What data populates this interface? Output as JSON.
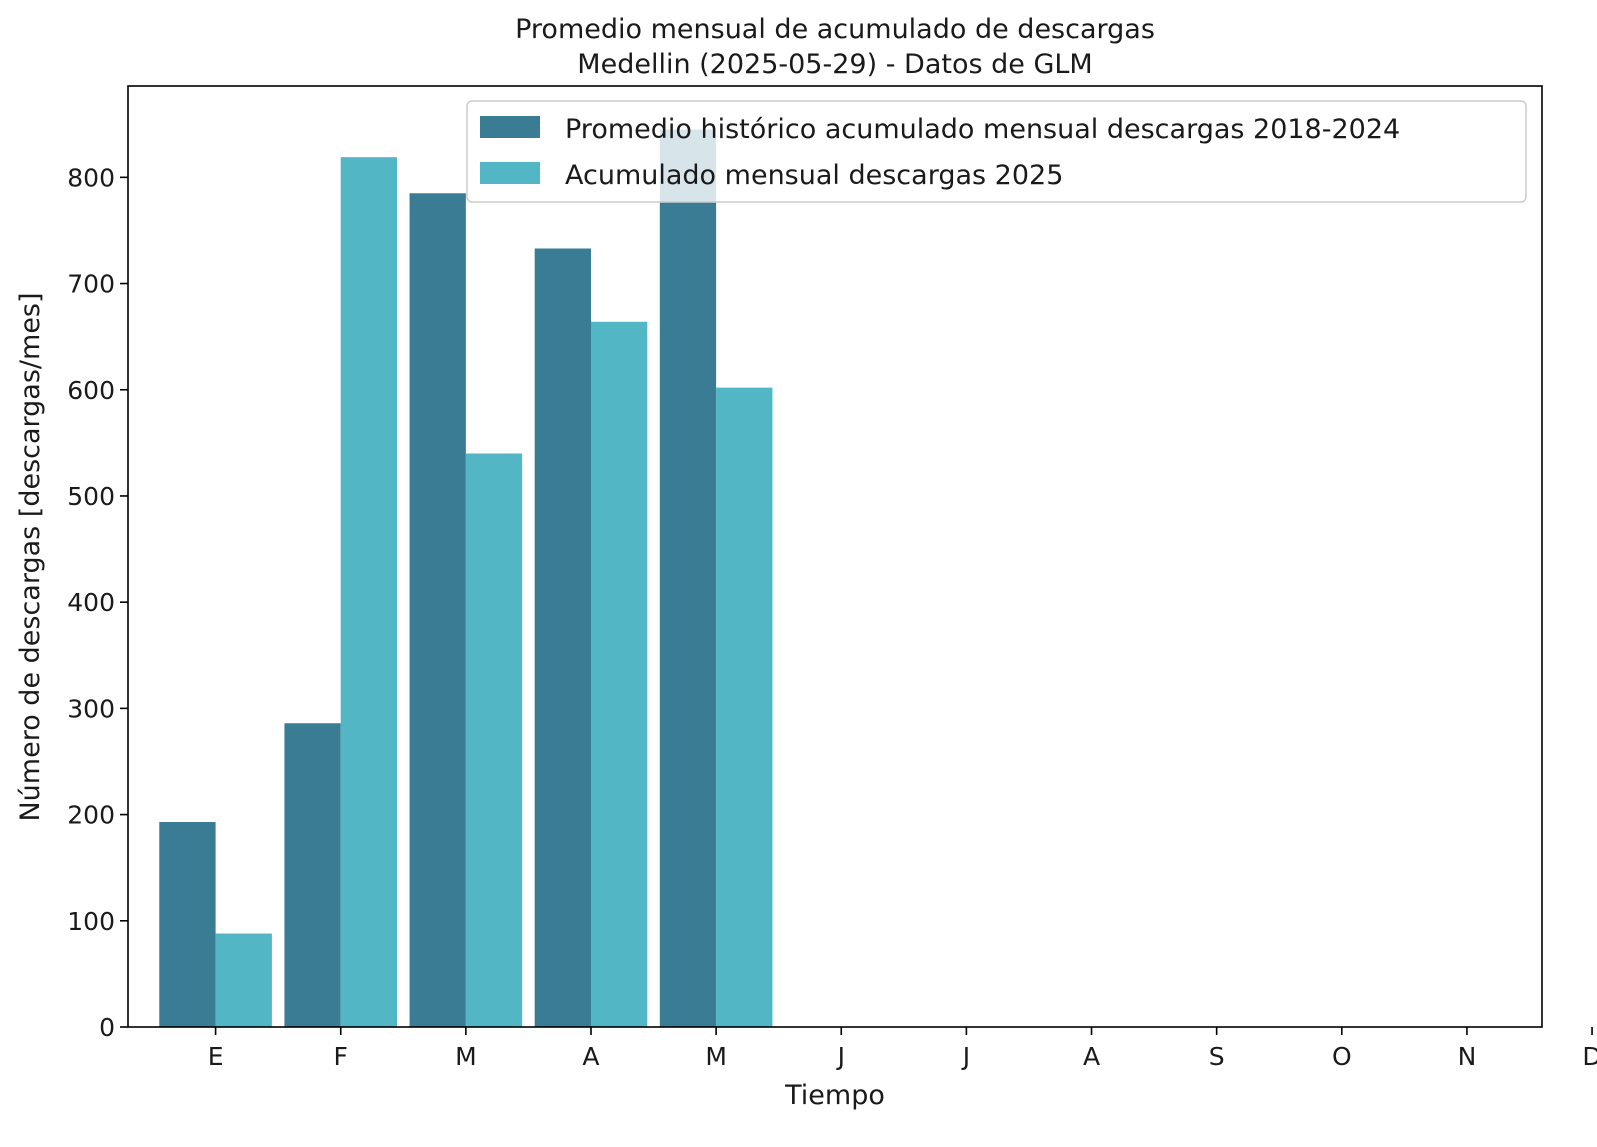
{
  "chart_data": {
    "type": "bar",
    "title": "Promedio mensual de acumulado de descargas",
    "subtitle": "Medellin (2025-05-29) - Datos de GLM",
    "xlabel": "Tiempo",
    "ylabel": "Número de descargas [descargas/mes]",
    "categories": [
      "E",
      "F",
      "M",
      "A",
      "M",
      "J",
      "J",
      "A",
      "S",
      "O",
      "N",
      "D"
    ],
    "series": [
      {
        "name": "Promedio histórico acumulado mensual descargas 2018-2024",
        "color": "#397c94",
        "values": [
          193,
          286,
          785,
          733,
          845,
          null,
          null,
          null,
          null,
          null,
          null,
          null
        ]
      },
      {
        "name": "Acumulado mensual descargas 2025",
        "color": "#53b6c5",
        "values": [
          88,
          819,
          540,
          664,
          602,
          null,
          null,
          null,
          null,
          null,
          null,
          null
        ]
      }
    ],
    "yticks": [
      0,
      100,
      200,
      300,
      400,
      500,
      600,
      700,
      800
    ],
    "ylim": [
      0,
      886
    ],
    "grid": false,
    "legend_position": "top-right"
  }
}
